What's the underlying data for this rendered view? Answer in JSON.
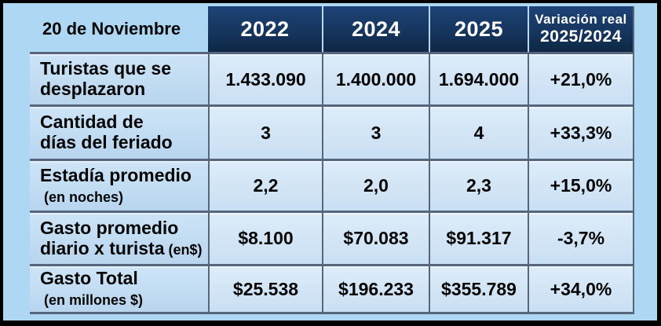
{
  "colors": {
    "page_bg": "#aed7f4",
    "frame": "#000000",
    "header_navy": "#16365e",
    "grid_line": "#57667d",
    "label_cell_bg": "#c2ddf4",
    "data_cell_bg": "#d5e6f6",
    "header_text": "#ffffff",
    "body_text": "#050505"
  },
  "header": {
    "title": "20 de Noviembre",
    "years": [
      "2022",
      "2024",
      "2025"
    ],
    "variation_line1": "Variación real",
    "variation_line2": "2025/2024"
  },
  "rows": [
    {
      "label1": "Turistas que se",
      "label2": "desplazaron",
      "note": "",
      "values": [
        "1.433.090",
        "1.400.000",
        "1.694.000",
        "+21,0%"
      ]
    },
    {
      "label1": "Cantidad de",
      "label2": "días del feriado",
      "note": "",
      "values": [
        "3",
        "3",
        "4",
        "+33,3%"
      ]
    },
    {
      "label1": "Estadía promedio",
      "label2": "",
      "note": "(en noches)",
      "values": [
        "2,2",
        "2,0",
        "2,3",
        "+15,0%"
      ]
    },
    {
      "label1": "Gasto promedio",
      "label2": "diario x turista",
      "note": "(en$)",
      "values": [
        "$8.100",
        "$70.083",
        "$91.317",
        "-3,7%"
      ]
    },
    {
      "label1": "Gasto Total",
      "label2": "",
      "note": "(en millones $)",
      "values": [
        "$25.538",
        "$196.233",
        "$355.789",
        "+34,0%"
      ]
    }
  ],
  "chart_data": {
    "type": "table",
    "title": "20 de Noviembre",
    "columns": [
      "2022",
      "2024",
      "2025",
      "Variación real 2025/2024"
    ],
    "rows": [
      {
        "label": "Turistas que se desplazaron",
        "values": [
          "1.433.090",
          "1.400.000",
          "1.694.000",
          "+21,0%"
        ]
      },
      {
        "label": "Cantidad de días del feriado",
        "values": [
          "3",
          "3",
          "4",
          "+33,3%"
        ]
      },
      {
        "label": "Estadía promedio (en noches)",
        "values": [
          "2,2",
          "2,0",
          "2,3",
          "+15,0%"
        ]
      },
      {
        "label": "Gasto promedio diario x turista (en$)",
        "values": [
          "$8.100",
          "$70.083",
          "$91.317",
          "-3,7%"
        ]
      },
      {
        "label": "Gasto Total (en millones $)",
        "values": [
          "$25.538",
          "$196.233",
          "$355.789",
          "+34,0%"
        ]
      }
    ]
  }
}
